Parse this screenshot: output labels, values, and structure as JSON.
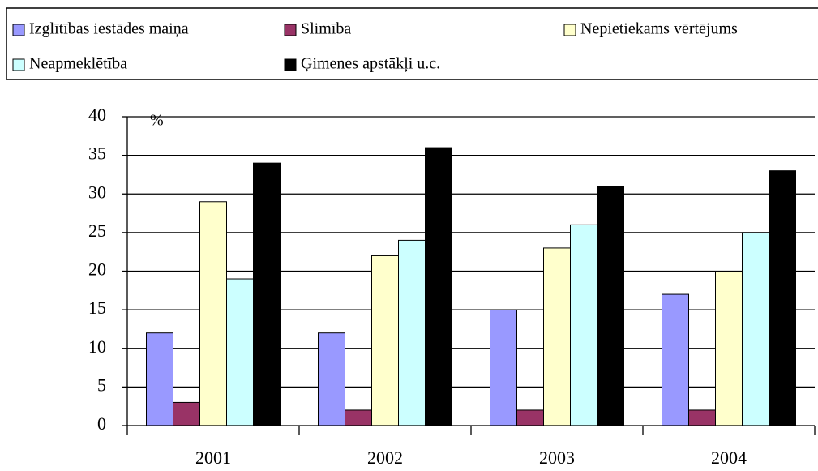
{
  "chart_data": {
    "type": "bar",
    "y_label": "%",
    "categories": [
      "2001",
      "2002",
      "2003",
      "2004"
    ],
    "series": [
      {
        "name": "Izglītības iestādes maiņa",
        "color": "#9999ff",
        "values": [
          12,
          12,
          15,
          17
        ]
      },
      {
        "name": "Slimība",
        "color": "#993366",
        "values": [
          3,
          2,
          2,
          2
        ]
      },
      {
        "name": "Nepietiekams vērtējums",
        "color": "#ffffcc",
        "values": [
          29,
          22,
          23,
          20
        ]
      },
      {
        "name": "Neapmeklētība",
        "color": "#ccffff",
        "values": [
          19,
          24,
          26,
          25
        ]
      },
      {
        "name": "Ģimenes apstākļi u.c.",
        "color": "#000000",
        "values": [
          34,
          36,
          31,
          33
        ]
      }
    ],
    "ylim": [
      0,
      40
    ],
    "yticks": [
      0,
      5,
      10,
      15,
      20,
      25,
      30,
      35,
      40
    ],
    "grid": true,
    "legend": "top"
  }
}
